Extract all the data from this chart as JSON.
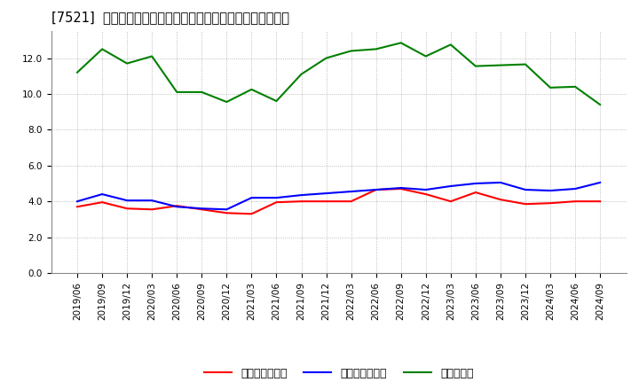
{
  "title": "[7521]  売上債権回転率、買入債務回転率、在庫回転率の推移",
  "x_labels": [
    "2019/06",
    "2019/09",
    "2019/12",
    "2020/03",
    "2020/06",
    "2020/09",
    "2020/12",
    "2021/03",
    "2021/06",
    "2021/09",
    "2021/12",
    "2022/03",
    "2022/06",
    "2022/09",
    "2022/12",
    "2023/03",
    "2023/06",
    "2023/09",
    "2023/12",
    "2024/03",
    "2024/06",
    "2024/09"
  ],
  "receivables_turnover": [
    3.7,
    3.95,
    3.6,
    3.55,
    3.75,
    3.55,
    3.35,
    3.3,
    3.95,
    4.0,
    4.0,
    4.0,
    4.65,
    4.7,
    4.4,
    4.0,
    4.5,
    4.1,
    3.85,
    3.9,
    4.0,
    4.0
  ],
  "payables_turnover": [
    4.0,
    4.4,
    4.05,
    4.05,
    3.7,
    3.6,
    3.55,
    4.2,
    4.2,
    4.35,
    4.45,
    4.55,
    4.65,
    4.75,
    4.65,
    4.85,
    5.0,
    5.05,
    4.65,
    4.6,
    4.7,
    5.05
  ],
  "inventory_turnover": [
    11.2,
    12.5,
    11.7,
    12.1,
    10.1,
    10.1,
    9.55,
    10.25,
    9.6,
    11.1,
    12.0,
    12.4,
    12.5,
    12.85,
    12.1,
    12.75,
    11.55,
    11.6,
    11.65,
    10.35,
    10.4,
    9.4
  ],
  "line_colors": {
    "receivables": "#ff0000",
    "payables": "#0000ff",
    "inventory": "#008000"
  },
  "legend_labels": {
    "receivables": "売上債権回転率",
    "payables": "買入債務回転率",
    "inventory": "在庫回転率"
  },
  "ylim": [
    0,
    13.5
  ],
  "yticks": [
    0.0,
    2.0,
    4.0,
    6.0,
    8.0,
    10.0,
    12.0
  ],
  "background_color": "#ffffff",
  "plot_bg_color": "#ffffff",
  "grid_color": "#aaaaaa",
  "title_fontsize": 10.5,
  "tick_fontsize": 7.5,
  "legend_fontsize": 9
}
